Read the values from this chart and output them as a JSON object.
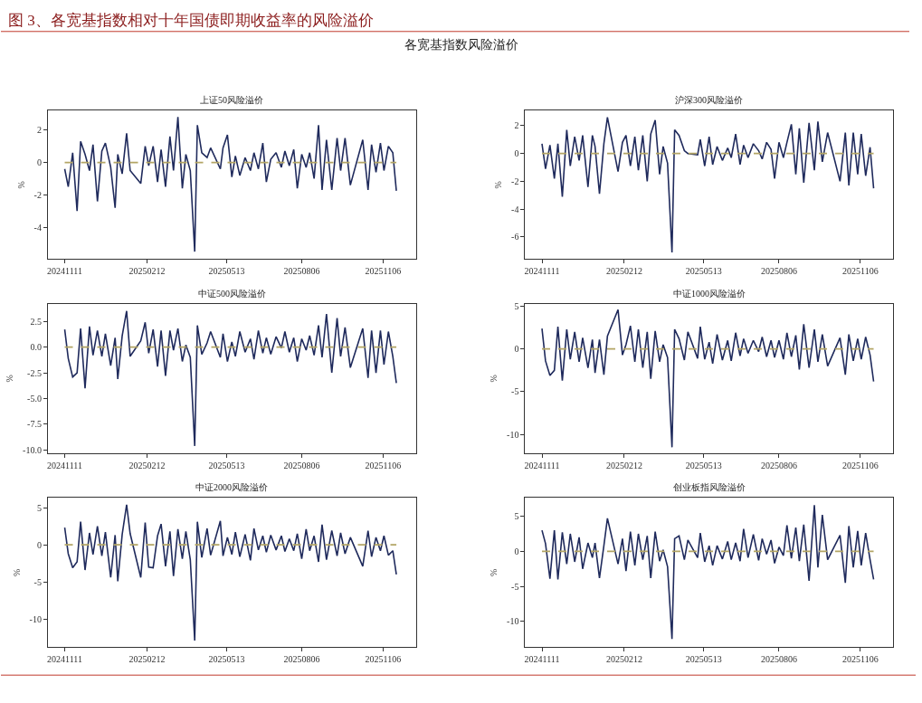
{
  "chart_data": [
    {
      "type": "line",
      "title": "上证50风险溢价",
      "ylabel": "%",
      "annotations": [
        "图 3、各宽基指数相对十年国债即期收益率的风险溢价",
        "各宽基指数风险溢价"
      ],
      "x": [
        "2024-11-11",
        "2024-11-15",
        "2024-11-20",
        "2024-11-25",
        "2024-11-29",
        "2024-12-04",
        "2024-12-09",
        "2024-12-13",
        "2024-12-18",
        "2024-12-23",
        "2024-12-27",
        "2025-01-02",
        "2025-01-07",
        "2025-01-10",
        "2025-01-15",
        "2025-01-20",
        "2025-01-24",
        "2025-02-05",
        "2025-02-10",
        "2025-02-14",
        "2025-02-19",
        "2025-02-24",
        "2025-02-28",
        "2025-03-05",
        "2025-03-10",
        "2025-03-14",
        "2025-03-19",
        "2025-03-24",
        "2025-03-28",
        "2025-04-02",
        "2025-04-07",
        "2025-04-10",
        "2025-04-15",
        "2025-04-21",
        "2025-04-25",
        "2025-05-06",
        "2025-05-09",
        "2025-05-14",
        "2025-05-19",
        "2025-05-23",
        "2025-05-28",
        "2025-06-03",
        "2025-06-09",
        "2025-06-13",
        "2025-06-18",
        "2025-06-23",
        "2025-06-27",
        "2025-07-02",
        "2025-07-08",
        "2025-07-14",
        "2025-07-18",
        "2025-07-23",
        "2025-07-28",
        "2025-08-01",
        "2025-08-06",
        "2025-08-11",
        "2025-08-15",
        "2025-08-20",
        "2025-08-25",
        "2025-08-29",
        "2025-09-03",
        "2025-09-09",
        "2025-09-15",
        "2025-09-19",
        "2025-09-24",
        "2025-09-30",
        "2025-10-14",
        "2025-10-20",
        "2025-10-24",
        "2025-10-29",
        "2025-11-03",
        "2025-11-07",
        "2025-11-12",
        "2025-11-17",
        "2025-11-21"
      ],
      "series": [
        {
          "color": "#1f2a5c",
          "values": [
            -0.4,
            -1.5,
            0.6,
            -3.0,
            1.3,
            0.5,
            -0.5,
            1.1,
            -2.4,
            0.7,
            1.2,
            -0.3,
            -2.8,
            0.5,
            -0.7,
            1.8,
            -0.5,
            -1.3,
            1.0,
            -0.2,
            1.0,
            -1.2,
            0.8,
            -1.5,
            1.6,
            -0.5,
            2.8,
            -1.6,
            0.5,
            -0.5,
            -5.5,
            2.3,
            0.6,
            0.3,
            0.9,
            -0.4,
            0.9,
            1.7,
            -0.9,
            0.4,
            -0.8,
            0.3,
            -0.5,
            0.6,
            -0.4,
            1.2,
            -1.2,
            0.2,
            0.6,
            -0.3,
            0.7,
            -0.2,
            0.8,
            -1.6,
            0.5,
            -0.3,
            0.6,
            -1.0,
            2.3,
            -1.7,
            1.4,
            -1.7,
            1.5,
            -0.5,
            1.5,
            -1.4,
            1.4,
            -1.7,
            1.1,
            -0.6,
            1.2,
            -0.5,
            1.0,
            0.6,
            -1.75
          ]
        }
      ],
      "xlim": [
        "2024-10-23",
        "2025-12-13"
      ],
      "xticks": [
        {
          "value": "2024-11-11",
          "label": "20241111"
        },
        {
          "value": "2025-02-12",
          "label": "20250212"
        },
        {
          "value": "2025-05-13",
          "label": "20250513"
        },
        {
          "value": "2025-08-06",
          "label": "20250806"
        },
        {
          "value": "2025-11-06",
          "label": "20251106"
        }
      ],
      "ylim": [
        -5.95,
        3.2
      ],
      "yticks": [
        -4,
        -2,
        0,
        2
      ],
      "ref_lines": [
        {
          "axis": "y",
          "value": 0,
          "color": "#b3a565",
          "line_style": "dashed"
        }
      ]
    },
    {
      "type": "line",
      "title": "沪深300风险溢价",
      "ylabel": "%",
      "x": [
        "2024-11-11",
        "2024-11-15",
        "2024-11-20",
        "2024-11-25",
        "2024-11-29",
        "2024-12-04",
        "2024-12-09",
        "2024-12-13",
        "2024-12-18",
        "2024-12-23",
        "2024-12-27",
        "2025-01-02",
        "2025-01-07",
        "2025-01-10",
        "2025-01-15",
        "2025-01-20",
        "2025-01-24",
        "2025-02-05",
        "2025-02-10",
        "2025-02-14",
        "2025-02-19",
        "2025-02-24",
        "2025-02-28",
        "2025-03-05",
        "2025-03-10",
        "2025-03-14",
        "2025-03-19",
        "2025-03-24",
        "2025-03-28",
        "2025-04-02",
        "2025-04-07",
        "2025-04-10",
        "2025-04-15",
        "2025-04-21",
        "2025-04-25",
        "2025-05-06",
        "2025-05-09",
        "2025-05-14",
        "2025-05-19",
        "2025-05-23",
        "2025-05-28",
        "2025-06-03",
        "2025-06-09",
        "2025-06-13",
        "2025-06-18",
        "2025-06-23",
        "2025-06-27",
        "2025-07-02",
        "2025-07-08",
        "2025-07-14",
        "2025-07-18",
        "2025-07-23",
        "2025-07-28",
        "2025-08-01",
        "2025-08-06",
        "2025-08-11",
        "2025-08-15",
        "2025-08-20",
        "2025-08-25",
        "2025-08-29",
        "2025-09-03",
        "2025-09-09",
        "2025-09-15",
        "2025-09-19",
        "2025-09-24",
        "2025-09-30",
        "2025-10-14",
        "2025-10-20",
        "2025-10-24",
        "2025-10-29",
        "2025-11-03",
        "2025-11-07",
        "2025-11-12",
        "2025-11-17",
        "2025-11-21"
      ],
      "series": [
        {
          "color": "#1f2a5c",
          "values": [
            0.7,
            -1.1,
            0.6,
            -1.8,
            0.7,
            -3.1,
            1.7,
            -0.9,
            1.2,
            -0.5,
            1.3,
            -2.4,
            1.3,
            0.5,
            -2.9,
            0.7,
            2.6,
            -1.3,
            0.8,
            1.3,
            -0.9,
            1.2,
            -1.2,
            1.3,
            -2.0,
            1.4,
            2.4,
            -1.5,
            0.5,
            -0.7,
            -7.1,
            1.7,
            1.3,
            0.2,
            0.0,
            -0.1,
            1.0,
            -0.9,
            1.2,
            -0.8,
            0.5,
            -0.5,
            0.4,
            -0.3,
            1.4,
            -0.8,
            0.6,
            -0.3,
            0.7,
            0.2,
            -0.4,
            0.8,
            0.3,
            -1.8,
            0.8,
            -0.3,
            0.8,
            2.1,
            -1.5,
            1.8,
            -2.1,
            2.2,
            -1.2,
            2.3,
            -0.6,
            1.5,
            -2.0,
            1.5,
            -2.3,
            1.5,
            -1.5,
            1.4,
            -1.6,
            0.45,
            -2.5
          ]
        }
      ],
      "xlim": [
        "2024-10-23",
        "2025-12-13"
      ],
      "xticks": [
        {
          "value": "2024-11-11",
          "label": "20241111"
        },
        {
          "value": "2025-02-12",
          "label": "20250212"
        },
        {
          "value": "2025-05-13",
          "label": "20250513"
        },
        {
          "value": "2025-08-06",
          "label": "20250806"
        },
        {
          "value": "2025-11-06",
          "label": "20251106"
        }
      ],
      "ylim": [
        -7.57,
        3.08
      ],
      "yticks": [
        -6,
        -4,
        -2,
        0,
        2
      ],
      "ref_lines": [
        {
          "axis": "y",
          "value": 0,
          "color": "#b3a565",
          "line_style": "dashed"
        }
      ]
    },
    {
      "type": "line",
      "title": "中证500风险溢价",
      "ylabel": "%",
      "x": [
        "2024-11-11",
        "2024-11-15",
        "2024-11-20",
        "2024-11-25",
        "2024-11-29",
        "2024-12-04",
        "2024-12-09",
        "2024-12-13",
        "2024-12-18",
        "2024-12-23",
        "2024-12-27",
        "2025-01-02",
        "2025-01-07",
        "2025-01-10",
        "2025-01-15",
        "2025-01-20",
        "2025-01-24",
        "2025-02-05",
        "2025-02-10",
        "2025-02-14",
        "2025-02-19",
        "2025-02-24",
        "2025-02-28",
        "2025-03-05",
        "2025-03-10",
        "2025-03-14",
        "2025-03-19",
        "2025-03-24",
        "2025-03-28",
        "2025-04-02",
        "2025-04-07",
        "2025-04-10",
        "2025-04-15",
        "2025-04-21",
        "2025-04-25",
        "2025-05-06",
        "2025-05-09",
        "2025-05-14",
        "2025-05-19",
        "2025-05-23",
        "2025-05-28",
        "2025-06-03",
        "2025-06-09",
        "2025-06-13",
        "2025-06-18",
        "2025-06-23",
        "2025-06-27",
        "2025-07-02",
        "2025-07-08",
        "2025-07-14",
        "2025-07-18",
        "2025-07-23",
        "2025-07-28",
        "2025-08-01",
        "2025-08-06",
        "2025-08-11",
        "2025-08-15",
        "2025-08-20",
        "2025-08-25",
        "2025-08-29",
        "2025-09-03",
        "2025-09-09",
        "2025-09-15",
        "2025-09-19",
        "2025-09-24",
        "2025-09-30",
        "2025-10-14",
        "2025-10-20",
        "2025-10-24",
        "2025-10-29",
        "2025-11-03",
        "2025-11-07",
        "2025-11-12",
        "2025-11-17",
        "2025-11-21"
      ],
      "series": [
        {
          "color": "#1f2a5c",
          "values": [
            1.7,
            -1.1,
            -2.9,
            -2.5,
            1.8,
            -4.0,
            2.0,
            -0.8,
            1.6,
            -0.9,
            1.3,
            -1.8,
            0.9,
            -3.1,
            1.1,
            3.5,
            -0.9,
            0.6,
            2.4,
            -0.6,
            1.7,
            -1.9,
            1.6,
            -2.8,
            1.6,
            -0.3,
            1.8,
            -1.4,
            0.2,
            -1.0,
            -9.6,
            2.1,
            -0.7,
            0.4,
            1.5,
            -1.0,
            1.3,
            -1.4,
            0.5,
            -0.9,
            1.5,
            -0.5,
            0.8,
            -1.2,
            1.6,
            -0.6,
            0.9,
            -0.7,
            1.0,
            -0.1,
            1.5,
            -0.5,
            0.9,
            -1.4,
            0.8,
            -0.3,
            1.1,
            -0.8,
            2.1,
            -1.0,
            3.2,
            -2.5,
            2.8,
            -0.9,
            1.9,
            -2.0,
            1.8,
            -3.0,
            1.6,
            -2.5,
            1.6,
            -1.7,
            1.5,
            -0.9,
            -3.5
          ]
        }
      ],
      "xlim": [
        "2024-10-23",
        "2025-12-13"
      ],
      "xticks": [
        {
          "value": "2024-11-11",
          "label": "20241111"
        },
        {
          "value": "2025-02-12",
          "label": "20250212"
        },
        {
          "value": "2025-05-13",
          "label": "20250513"
        },
        {
          "value": "2025-08-06",
          "label": "20250806"
        },
        {
          "value": "2025-11-06",
          "label": "20251106"
        }
      ],
      "ylim": [
        -10.29,
        4.19
      ],
      "yticks": [
        {
          "value": -10,
          "label": "-10.0"
        },
        -7.5,
        {
          "value": -5,
          "label": "-5.0"
        },
        -2.5,
        {
          "value": 0,
          "label": "0.0"
        },
        2.5
      ],
      "ref_lines": [
        {
          "axis": "y",
          "value": 0,
          "color": "#b3a565",
          "line_style": "dashed"
        }
      ]
    },
    {
      "type": "line",
      "title": "中证1000风险溢价",
      "ylabel": "%",
      "x": [
        "2024-11-11",
        "2024-11-15",
        "2024-11-20",
        "2024-11-25",
        "2024-11-29",
        "2024-12-04",
        "2024-12-09",
        "2024-12-13",
        "2024-12-18",
        "2024-12-23",
        "2024-12-27",
        "2025-01-02",
        "2025-01-07",
        "2025-01-10",
        "2025-01-15",
        "2025-01-20",
        "2025-01-24",
        "2025-02-05",
        "2025-02-10",
        "2025-02-14",
        "2025-02-19",
        "2025-02-24",
        "2025-02-28",
        "2025-03-05",
        "2025-03-10",
        "2025-03-14",
        "2025-03-19",
        "2025-03-24",
        "2025-03-28",
        "2025-04-02",
        "2025-04-07",
        "2025-04-10",
        "2025-04-15",
        "2025-04-21",
        "2025-04-25",
        "2025-05-06",
        "2025-05-09",
        "2025-05-14",
        "2025-05-19",
        "2025-05-23",
        "2025-05-28",
        "2025-06-03",
        "2025-06-09",
        "2025-06-13",
        "2025-06-18",
        "2025-06-23",
        "2025-06-27",
        "2025-07-02",
        "2025-07-08",
        "2025-07-14",
        "2025-07-18",
        "2025-07-23",
        "2025-07-28",
        "2025-08-01",
        "2025-08-06",
        "2025-08-11",
        "2025-08-15",
        "2025-08-20",
        "2025-08-25",
        "2025-08-29",
        "2025-09-03",
        "2025-09-09",
        "2025-09-15",
        "2025-09-19",
        "2025-09-24",
        "2025-09-30",
        "2025-10-14",
        "2025-10-20",
        "2025-10-24",
        "2025-10-29",
        "2025-11-03",
        "2025-11-07",
        "2025-11-12",
        "2025-11-17",
        "2025-11-21"
      ],
      "series": [
        {
          "color": "#1f2a5c",
          "values": [
            2.4,
            -1.4,
            -3.1,
            -2.5,
            2.6,
            -3.7,
            2.3,
            -1.2,
            2.0,
            -1.5,
            1.3,
            -2.2,
            1.1,
            -2.8,
            1.1,
            -3.0,
            1.5,
            4.6,
            -0.7,
            0.5,
            2.7,
            -1.5,
            2.3,
            -2.2,
            2.0,
            -3.5,
            2.1,
            -1.5,
            0.5,
            -1.0,
            -11.5,
            2.3,
            1.2,
            -1.3,
            2.0,
            -1.1,
            2.6,
            -1.2,
            0.8,
            -1.7,
            1.7,
            -1.3,
            1.0,
            -1.4,
            1.9,
            -0.8,
            1.2,
            -0.5,
            1.0,
            -0.3,
            1.4,
            -0.9,
            1.0,
            -1.0,
            1.0,
            -1.2,
            1.9,
            -0.9,
            1.6,
            -2.4,
            2.9,
            -2.2,
            2.3,
            -1.5,
            1.7,
            -2.0,
            1.3,
            -3.0,
            1.7,
            -1.4,
            1.2,
            -1.2,
            1.4,
            -0.7,
            -3.8
          ]
        }
      ],
      "xlim": [
        "2024-10-23",
        "2025-12-13"
      ],
      "xticks": [
        {
          "value": "2024-11-11",
          "label": "20241111"
        },
        {
          "value": "2025-02-12",
          "label": "20250212"
        },
        {
          "value": "2025-05-13",
          "label": "20250513"
        },
        {
          "value": "2025-08-06",
          "label": "20250806"
        },
        {
          "value": "2025-11-06",
          "label": "20251106"
        }
      ],
      "ylim": [
        -12.18,
        5.28
      ],
      "yticks": [
        -10,
        -5,
        0,
        5
      ],
      "ref_lines": [
        {
          "axis": "y",
          "value": 0,
          "color": "#b3a565",
          "line_style": "dashed"
        }
      ]
    },
    {
      "type": "line",
      "title": "中证2000风险溢价",
      "ylabel": "%",
      "x": [
        "2024-11-11",
        "2024-11-15",
        "2024-11-20",
        "2024-11-25",
        "2024-11-29",
        "2024-12-04",
        "2024-12-09",
        "2024-12-13",
        "2024-12-18",
        "2024-12-23",
        "2024-12-27",
        "2025-01-02",
        "2025-01-07",
        "2025-01-10",
        "2025-01-15",
        "2025-01-20",
        "2025-01-24",
        "2025-02-05",
        "2025-02-10",
        "2025-02-14",
        "2025-02-19",
        "2025-02-24",
        "2025-02-28",
        "2025-03-05",
        "2025-03-10",
        "2025-03-14",
        "2025-03-19",
        "2025-03-24",
        "2025-03-28",
        "2025-04-02",
        "2025-04-07",
        "2025-04-10",
        "2025-04-15",
        "2025-04-21",
        "2025-04-25",
        "2025-05-06",
        "2025-05-09",
        "2025-05-14",
        "2025-05-19",
        "2025-05-23",
        "2025-05-28",
        "2025-06-03",
        "2025-06-09",
        "2025-06-13",
        "2025-06-18",
        "2025-06-23",
        "2025-06-27",
        "2025-07-02",
        "2025-07-08",
        "2025-07-14",
        "2025-07-18",
        "2025-07-23",
        "2025-07-28",
        "2025-08-01",
        "2025-08-06",
        "2025-08-11",
        "2025-08-15",
        "2025-08-20",
        "2025-08-25",
        "2025-08-29",
        "2025-09-03",
        "2025-09-09",
        "2025-09-15",
        "2025-09-19",
        "2025-09-24",
        "2025-09-30",
        "2025-10-14",
        "2025-10-20",
        "2025-10-24",
        "2025-10-29",
        "2025-11-03",
        "2025-11-07",
        "2025-11-12",
        "2025-11-17",
        "2025-11-21"
      ],
      "series": [
        {
          "color": "#1f2a5c",
          "values": [
            2.3,
            -1.2,
            -3.1,
            -2.3,
            3.1,
            -3.4,
            1.6,
            -1.3,
            2.5,
            -1.5,
            1.7,
            -4.4,
            1.3,
            -4.9,
            1.4,
            5.4,
            1.5,
            -4.4,
            3.0,
            -3.0,
            -3.1,
            1.2,
            2.8,
            -2.9,
            1.8,
            -4.2,
            2.1,
            -1.9,
            1.8,
            -2.0,
            -12.9,
            3.1,
            -1.7,
            2.2,
            -1.4,
            3.2,
            -1.5,
            1.0,
            -1.3,
            1.7,
            -1.6,
            1.4,
            -2.1,
            2.2,
            -0.7,
            1.2,
            -1.0,
            1.3,
            -0.7,
            1.2,
            -0.9,
            0.8,
            -0.8,
            1.5,
            -1.9,
            2.1,
            -0.8,
            1.2,
            -2.3,
            2.7,
            -2.0,
            1.9,
            -1.5,
            1.6,
            -1.2,
            1.0,
            -2.9,
            1.9,
            -1.6,
            1.0,
            -0.8,
            1.2,
            -1.4,
            -0.8,
            -4.0
          ]
        }
      ],
      "xlim": [
        "2024-10-23",
        "2025-12-13"
      ],
      "xticks": [
        {
          "value": "2024-11-11",
          "label": "20241111"
        },
        {
          "value": "2025-02-12",
          "label": "20250212"
        },
        {
          "value": "2025-05-13",
          "label": "20250513"
        },
        {
          "value": "2025-08-06",
          "label": "20250806"
        },
        {
          "value": "2025-11-06",
          "label": "20251106"
        }
      ],
      "ylim": [
        -13.79,
        6.29
      ],
      "yticks": [
        -10,
        -5,
        0,
        5
      ],
      "ref_lines": [
        {
          "axis": "y",
          "value": 0,
          "color": "#b3a565",
          "line_style": "dashed"
        }
      ]
    },
    {
      "type": "line",
      "title": "创业板指风险溢价",
      "ylabel": "%",
      "x": [
        "2024-11-11",
        "2024-11-15",
        "2024-11-20",
        "2024-11-25",
        "2024-11-29",
        "2024-12-04",
        "2024-12-09",
        "2024-12-13",
        "2024-12-18",
        "2024-12-23",
        "2024-12-27",
        "2025-01-02",
        "2025-01-07",
        "2025-01-10",
        "2025-01-15",
        "2025-01-20",
        "2025-01-24",
        "2025-02-05",
        "2025-02-10",
        "2025-02-14",
        "2025-02-19",
        "2025-02-24",
        "2025-02-28",
        "2025-03-05",
        "2025-03-10",
        "2025-03-14",
        "2025-03-19",
        "2025-03-24",
        "2025-03-28",
        "2025-04-02",
        "2025-04-07",
        "2025-04-10",
        "2025-04-15",
        "2025-04-21",
        "2025-04-25",
        "2025-05-06",
        "2025-05-09",
        "2025-05-14",
        "2025-05-19",
        "2025-05-23",
        "2025-05-28",
        "2025-06-03",
        "2025-06-09",
        "2025-06-13",
        "2025-06-18",
        "2025-06-23",
        "2025-06-27",
        "2025-07-02",
        "2025-07-08",
        "2025-07-14",
        "2025-07-18",
        "2025-07-23",
        "2025-07-28",
        "2025-08-01",
        "2025-08-06",
        "2025-08-11",
        "2025-08-15",
        "2025-08-20",
        "2025-08-25",
        "2025-08-29",
        "2025-09-03",
        "2025-09-09",
        "2025-09-15",
        "2025-09-19",
        "2025-09-24",
        "2025-09-30",
        "2025-10-14",
        "2025-10-20",
        "2025-10-24",
        "2025-10-29",
        "2025-11-03",
        "2025-11-07",
        "2025-11-12",
        "2025-11-17",
        "2025-11-21"
      ],
      "series": [
        {
          "color": "#1f2a5c",
          "values": [
            3.0,
            1.1,
            -3.9,
            3.0,
            -4.0,
            2.7,
            -1.8,
            2.5,
            -1.5,
            2.0,
            -2.5,
            1.2,
            -0.9,
            1.2,
            -3.8,
            0.8,
            4.7,
            -1.8,
            1.8,
            -2.8,
            2.8,
            -2.0,
            2.5,
            -1.2,
            2.2,
            -3.8,
            2.8,
            -1.4,
            0.2,
            -2.2,
            -12.5,
            1.8,
            2.2,
            -1.2,
            1.6,
            -0.9,
            2.6,
            -1.5,
            0.8,
            -2.0,
            0.8,
            -1.1,
            1.4,
            -1.2,
            1.2,
            -1.4,
            3.2,
            -0.9,
            2.4,
            -1.3,
            1.8,
            -0.4,
            1.6,
            -1.7,
            0.6,
            -0.6,
            3.7,
            -1.0,
            3.4,
            -1.4,
            3.8,
            -4.2,
            6.6,
            -2.3,
            5.2,
            -1.2,
            2.3,
            -4.5,
            3.6,
            -2.3,
            2.9,
            -2.0,
            2.6,
            -1.2,
            -4.0
          ]
        }
      ],
      "xlim": [
        "2024-10-23",
        "2025-12-13"
      ],
      "xticks": [
        {
          "value": "2024-11-11",
          "label": "20241111"
        },
        {
          "value": "2025-02-12",
          "label": "20250212"
        },
        {
          "value": "2025-05-13",
          "label": "20250513"
        },
        {
          "value": "2025-08-06",
          "label": "20250806"
        },
        {
          "value": "2025-11-06",
          "label": "20251106"
        }
      ],
      "ylim": [
        -13.68,
        7.6
      ],
      "yticks": [
        -10,
        -5,
        0,
        5
      ],
      "ref_lines": [
        {
          "axis": "y",
          "value": 0,
          "color": "#b3a565",
          "line_style": "dashed"
        }
      ]
    }
  ]
}
